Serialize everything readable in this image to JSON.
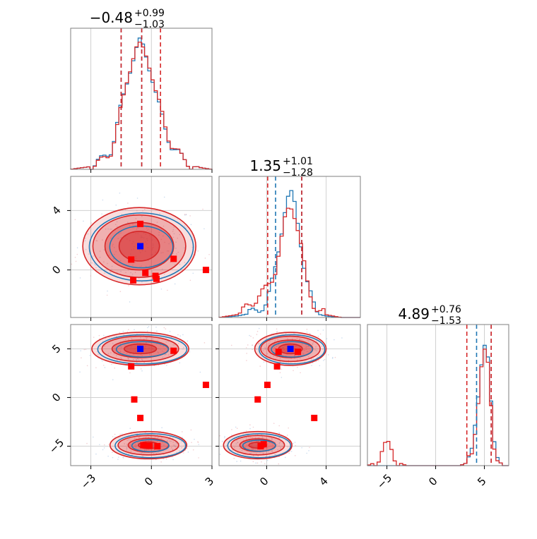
{
  "colors": {
    "blue": "#1f77b4",
    "red": "#d62728",
    "grid": "#d0d0d0",
    "frame": "#7f7f7f",
    "marker_red": "#ff0000",
    "marker_blue": "#0000ff"
  },
  "chart_data": [
    {
      "type": "histogram",
      "panel": "p1",
      "title_main": "−0.48",
      "title_sup": "+0.99",
      "title_sub": "−1.03",
      "xlim": [
        -4.0,
        3.0
      ],
      "x_ticks": [
        -3,
        0,
        3
      ],
      "grid": true,
      "quantile_lines": {
        "red": [
          -1.5,
          -0.48,
          0.45
        ],
        "blue": [
          -1.5,
          -0.48
        ]
      },
      "series": [
        {
          "color_key": "blue",
          "x": [
            -4.0,
            -3.5,
            -3.0,
            -2.5,
            -2.0,
            -1.8,
            -1.6,
            -1.4,
            -1.2,
            -1.0,
            -0.8,
            -0.6,
            -0.4,
            -0.2,
            0.0,
            0.2,
            0.4,
            0.6,
            0.8,
            1.0,
            1.5,
            2.0,
            2.5,
            3.0
          ],
          "y": [
            0.0,
            0.01,
            0.02,
            0.06,
            0.14,
            0.24,
            0.38,
            0.5,
            0.63,
            0.75,
            0.83,
            0.9,
            0.86,
            0.78,
            0.68,
            0.55,
            0.43,
            0.33,
            0.24,
            0.17,
            0.08,
            0.03,
            0.01,
            0.0
          ]
        },
        {
          "color_key": "red",
          "x": [
            -4.0,
            -3.5,
            -3.0,
            -2.5,
            -2.0,
            -1.8,
            -1.6,
            -1.4,
            -1.2,
            -1.0,
            -0.8,
            -0.6,
            -0.4,
            -0.2,
            0.0,
            0.2,
            0.4,
            0.6,
            0.8,
            1.0,
            1.5,
            2.0,
            2.5,
            3.0
          ],
          "y": [
            0.0,
            0.01,
            0.02,
            0.05,
            0.13,
            0.23,
            0.36,
            0.49,
            0.64,
            0.76,
            0.85,
            0.87,
            0.84,
            0.8,
            0.7,
            0.56,
            0.45,
            0.35,
            0.25,
            0.18,
            0.08,
            0.03,
            0.01,
            0.0
          ]
        }
      ]
    },
    {
      "type": "scatter_contour",
      "panel": "p21",
      "xlim": [
        -4.0,
        3.0
      ],
      "ylim": [
        -3.2,
        6.3
      ],
      "x_ticks": [
        -3,
        0,
        3
      ],
      "y_ticks": [
        0,
        4
      ],
      "grid": true,
      "blobs": [
        {
          "cx": -0.6,
          "cy": 1.6,
          "rx": [
            2.8,
            2.3,
            1.7,
            1.0
          ],
          "ry": [
            2.6,
            2.1,
            1.6,
            1.0
          ]
        }
      ],
      "markers_red": [
        {
          "x": -0.55,
          "y": 3.1
        },
        {
          "x": -1.0,
          "y": 0.7
        },
        {
          "x": -0.9,
          "y": -0.7
        },
        {
          "x": -0.3,
          "y": -0.2
        },
        {
          "x": 0.2,
          "y": -0.4
        },
        {
          "x": 0.25,
          "y": -0.6
        },
        {
          "x": 1.1,
          "y": 0.75
        },
        {
          "x": 2.7,
          "y": 0.0
        }
      ],
      "markers_blue": [
        {
          "x": -0.55,
          "y": 1.6
        }
      ]
    },
    {
      "type": "histogram",
      "panel": "p22",
      "title_main": "1.35",
      "title_sup": "+1.01",
      "title_sub": "−1.28",
      "xlim": [
        -3.2,
        6.3
      ],
      "x_ticks": [
        0,
        4
      ],
      "grid": true,
      "quantile_lines": {
        "red": [
          0.07,
          2.36
        ],
        "blue": [
          0.6,
          2.36
        ]
      },
      "series": [
        {
          "color_key": "blue",
          "x": [
            -3.2,
            -2.0,
            -1.0,
            0.0,
            0.5,
            1.0,
            1.3,
            1.6,
            1.9,
            2.2,
            2.5,
            2.8,
            3.2,
            3.6,
            4.0,
            5.0,
            6.3
          ],
          "y": [
            0.0,
            0.01,
            0.03,
            0.1,
            0.3,
            0.62,
            0.8,
            0.88,
            0.8,
            0.62,
            0.38,
            0.2,
            0.08,
            0.02,
            0.01,
            0.0,
            0.0
          ]
        },
        {
          "color_key": "red",
          "x": [
            -3.2,
            -2.0,
            -1.5,
            -1.0,
            -0.5,
            0.0,
            0.5,
            1.0,
            1.3,
            1.6,
            1.9,
            2.2,
            2.5,
            2.8,
            3.2,
            3.6,
            4.0,
            5.0,
            6.3
          ],
          "y": [
            0.0,
            0.02,
            0.05,
            0.1,
            0.16,
            0.2,
            0.3,
            0.55,
            0.72,
            0.8,
            0.73,
            0.58,
            0.38,
            0.2,
            0.09,
            0.04,
            0.02,
            0.0,
            0.0
          ]
        }
      ]
    },
    {
      "type": "scatter_contour",
      "panel": "p31",
      "xlim": [
        -4.0,
        3.0
      ],
      "ylim": [
        -7.0,
        7.5
      ],
      "x_ticks": [
        -3,
        0,
        3
      ],
      "y_ticks": [
        -5,
        0,
        5
      ],
      "grid": true,
      "blobs": [
        {
          "cx": -0.55,
          "cy": 5.0,
          "rx": [
            2.4,
            1.9,
            1.4,
            0.8
          ],
          "ry": [
            1.7,
            1.3,
            0.9,
            0.5
          ]
        },
        {
          "cx": -0.15,
          "cy": -4.9,
          "rx": [
            1.9,
            1.5,
            1.0,
            0.5
          ],
          "ry": [
            1.4,
            1.0,
            0.7,
            0.35
          ]
        }
      ],
      "markers_red": [
        {
          "x": -1.0,
          "y": 3.2
        },
        {
          "x": 1.1,
          "y": 4.8
        },
        {
          "x": 2.7,
          "y": 1.3
        },
        {
          "x": -0.85,
          "y": -0.2
        },
        {
          "x": -0.55,
          "y": -2.1
        },
        {
          "x": -0.4,
          "y": -4.9
        },
        {
          "x": -0.1,
          "y": -4.95
        },
        {
          "x": 0.3,
          "y": -5.0
        }
      ],
      "markers_blue": [
        {
          "x": -0.55,
          "y": 5.0
        }
      ]
    },
    {
      "type": "scatter_contour",
      "panel": "p32",
      "xlim": [
        -3.2,
        6.3
      ],
      "ylim": [
        -7.0,
        7.5
      ],
      "x_ticks": [
        0,
        4
      ],
      "y_ticks": [
        -5,
        0,
        5
      ],
      "grid": true,
      "blobs": [
        {
          "cx": 1.6,
          "cy": 5.0,
          "rx": [
            2.4,
            2.0,
            1.5,
            0.8
          ],
          "ry": [
            1.7,
            1.3,
            0.9,
            0.5
          ]
        },
        {
          "cx": -0.6,
          "cy": -4.9,
          "rx": [
            2.3,
            1.8,
            1.2,
            0.6
          ],
          "ry": [
            1.4,
            1.0,
            0.65,
            0.3
          ]
        }
      ],
      "markers_red": [
        {
          "x": 0.8,
          "y": 4.7
        },
        {
          "x": 2.1,
          "y": 4.7
        },
        {
          "x": 0.7,
          "y": 3.2
        },
        {
          "x": 0.05,
          "y": 1.3
        },
        {
          "x": -0.6,
          "y": -0.2
        },
        {
          "x": 3.2,
          "y": -2.1
        },
        {
          "x": -0.4,
          "y": -5.0
        },
        {
          "x": -0.2,
          "y": -4.8
        }
      ],
      "markers_blue": [
        {
          "x": 1.6,
          "y": 5.0
        }
      ]
    },
    {
      "type": "histogram",
      "panel": "p33",
      "title_main": "4.89",
      "title_sup": "+0.76",
      "title_sub": "−1.53",
      "xlim": [
        -7.0,
        7.5
      ],
      "x_ticks": [
        -5,
        0,
        5
      ],
      "grid": true,
      "quantile_lines": {
        "red": [
          3.2,
          5.7
        ],
        "blue": [
          4.2,
          5.7
        ]
      },
      "series": [
        {
          "color_key": "blue",
          "x": [
            -7.0,
            2.5,
            3.2,
            3.8,
            4.3,
            4.7,
            5.0,
            5.3,
            5.6,
            6.0,
            6.5,
            7.0,
            7.5
          ],
          "y": [
            0.0,
            0.0,
            0.02,
            0.1,
            0.45,
            0.75,
            0.88,
            0.82,
            0.5,
            0.15,
            0.03,
            0.0,
            0.0
          ],
          "skip_plateau": true
        },
        {
          "color_key": "red",
          "x": [
            -7.0,
            -6.3,
            -5.8,
            -5.4,
            -5.0,
            -4.6,
            -4.2,
            -3.7,
            -3.0,
            2.5,
            3.2,
            3.8,
            4.3,
            4.7,
            5.0,
            5.3,
            5.6,
            6.0,
            6.5,
            7.0,
            7.5
          ],
          "y": [
            0.0,
            0.02,
            0.06,
            0.12,
            0.15,
            0.12,
            0.06,
            0.02,
            0.0,
            0.0,
            0.02,
            0.1,
            0.42,
            0.7,
            0.8,
            0.75,
            0.5,
            0.15,
            0.03,
            0.0,
            0.0
          ]
        }
      ]
    }
  ]
}
